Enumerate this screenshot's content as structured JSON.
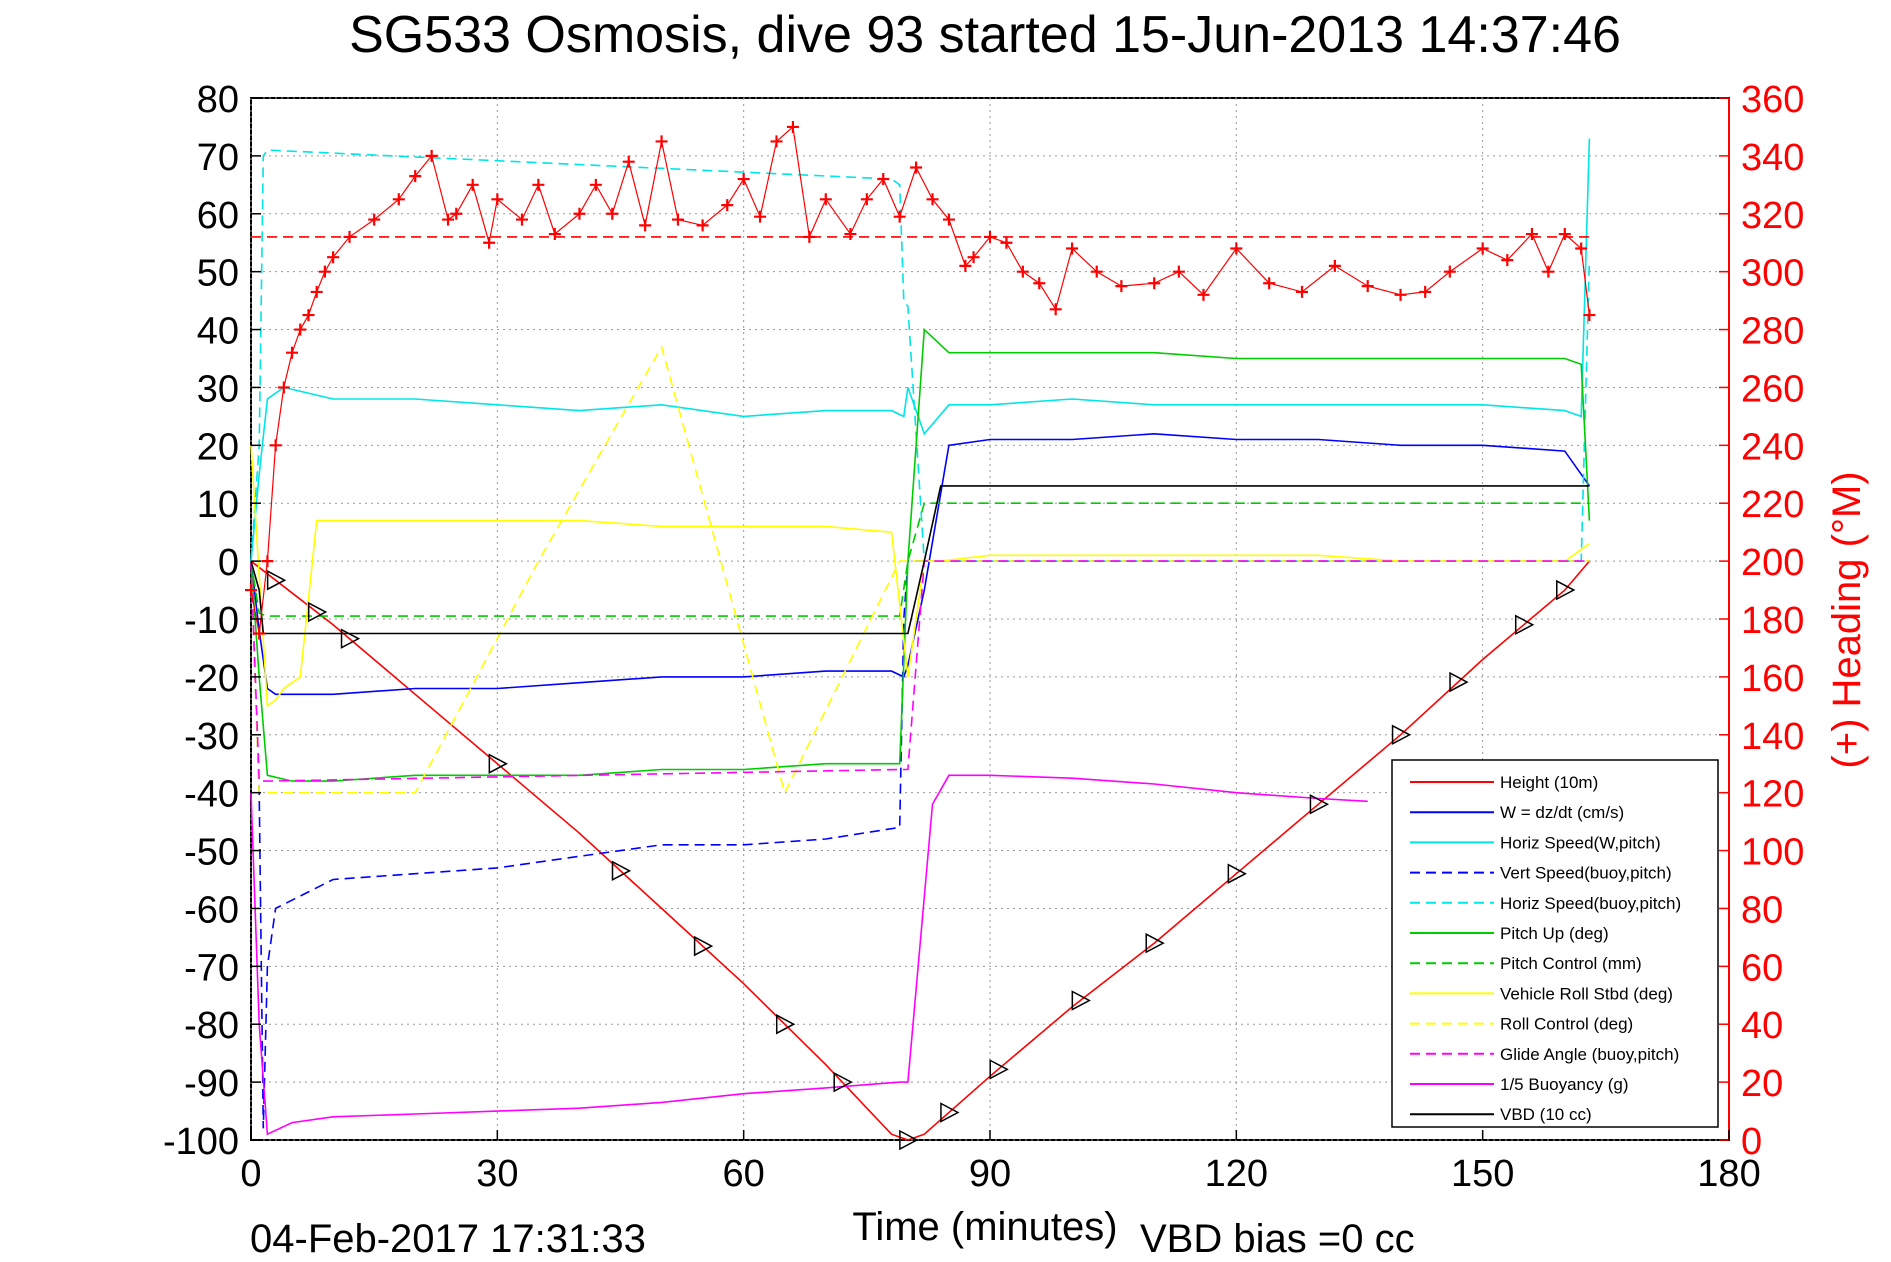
{
  "chart_data": {
    "type": "line",
    "title": "SG533 Osmosis, dive 93 started 15-Jun-2013 14:37:46",
    "xlabel": "Time (minutes)",
    "ylabel_right": "(+) Heading (°M)",
    "footer_date": "04-Feb-2017 17:31:33",
    "footer_note": "VBD bias =0 cc",
    "xlim": [
      0,
      180
    ],
    "ylim": [
      -100,
      80
    ],
    "ylim_right": [
      0,
      360
    ],
    "xticks": [
      0,
      30,
      60,
      90,
      120,
      150,
      180
    ],
    "yticks": [
      80,
      70,
      60,
      50,
      40,
      30,
      20,
      10,
      0,
      -10,
      -20,
      -30,
      -40,
      -50,
      -60,
      -70,
      -80,
      -90,
      -100
    ],
    "yticks_right": [
      360,
      340,
      320,
      300,
      280,
      260,
      240,
      220,
      200,
      180,
      160,
      140,
      120,
      100,
      80,
      60,
      40,
      20,
      0
    ],
    "grid": true,
    "legend_position": "bottom-right",
    "colors": {
      "red": "#ff0000",
      "blue": "#0000ff",
      "cyan": "#00e5e5",
      "green": "#00cc00",
      "yellow": "#ffff00",
      "magenta": "#ff00ff",
      "black": "#000000"
    },
    "series": [
      {
        "name": "Height (10m)",
        "color": "#ff0000",
        "dash": false,
        "x": [
          0,
          10,
          20,
          30,
          40,
          50,
          60,
          70,
          78,
          80,
          82,
          90,
          100,
          110,
          120,
          130,
          140,
          150,
          160,
          163
        ],
        "y": [
          0,
          -11,
          -23,
          -35,
          -47,
          -60,
          -73,
          -87,
          -99,
          -100,
          -99,
          -89,
          -77,
          -66,
          -54,
          -42,
          -30,
          -17,
          -5,
          0
        ]
      },
      {
        "name": "W = dz/dt (cm/s)",
        "color": "#0000ff",
        "dash": false,
        "x": [
          0,
          1,
          2,
          3,
          10,
          20,
          30,
          40,
          50,
          60,
          70,
          78,
          79.5,
          80,
          82,
          85,
          90,
          100,
          110,
          120,
          130,
          140,
          150,
          160,
          163
        ],
        "y": [
          0,
          -12,
          -22,
          -23,
          -23,
          -22,
          -22,
          -21,
          -20,
          -20,
          -19,
          -19,
          -20,
          -18,
          -5,
          20,
          21,
          21,
          22,
          21,
          21,
          20,
          20,
          19,
          13
        ]
      },
      {
        "name": "Horiz Speed(W,pitch)",
        "color": "#00e5e5",
        "dash": false,
        "x": [
          0,
          1,
          2,
          4,
          10,
          20,
          30,
          40,
          50,
          60,
          70,
          78,
          79.5,
          80,
          82,
          85,
          90,
          100,
          110,
          120,
          130,
          140,
          150,
          160,
          162,
          163
        ],
        "y": [
          0,
          15,
          28,
          30,
          28,
          28,
          27,
          26,
          27,
          25,
          26,
          26,
          25,
          30,
          22,
          27,
          27,
          28,
          27,
          27,
          27,
          27,
          27,
          26,
          25,
          73
        ]
      },
      {
        "name": "Vert Speed(buoy,pitch)",
        "color": "#0000ff",
        "dash": true,
        "x": [
          0,
          1,
          1.5,
          2,
          3,
          10,
          20,
          30,
          40,
          50,
          60,
          70,
          79,
          79.5,
          80,
          81,
          82,
          162,
          163
        ],
        "y": [
          0,
          -40,
          -98,
          -70,
          -60,
          -55,
          -54,
          -53,
          -51,
          -49,
          -49,
          -48,
          -46,
          -10,
          0,
          0,
          0,
          0,
          0
        ]
      },
      {
        "name": "Horiz Speed(buoy,pitch)",
        "color": "#00e5e5",
        "dash": true,
        "x": [
          0,
          1,
          1.5,
          2,
          78,
          79,
          79.5,
          80,
          82,
          162,
          163
        ],
        "y": [
          0,
          20,
          70,
          71,
          66,
          65,
          45,
          44,
          0,
          0,
          52
        ]
      },
      {
        "name": "Pitch Up (deg)",
        "color": "#00cc00",
        "dash": false,
        "x": [
          0,
          1,
          2,
          5,
          10,
          20,
          30,
          40,
          50,
          60,
          70,
          79,
          80,
          82,
          85,
          90,
          100,
          110,
          120,
          130,
          140,
          150,
          160,
          162,
          163
        ],
        "y": [
          0,
          -20,
          -37,
          -38,
          -38,
          -37,
          -37,
          -37,
          -36,
          -36,
          -35,
          -35,
          0,
          40,
          36,
          36,
          36,
          36,
          35,
          35,
          35,
          35,
          35,
          34,
          7
        ]
      },
      {
        "name": "Pitch Control (mm)",
        "color": "#00cc00",
        "dash": true,
        "x": [
          0,
          1,
          2,
          79,
          80,
          82,
          163
        ],
        "y": [
          0,
          -9,
          -9.5,
          -9.5,
          0,
          10,
          10
        ]
      },
      {
        "name": "Vehicle Roll Stbd (deg)",
        "color": "#ffff00",
        "dash": false,
        "x": [
          0,
          2,
          3,
          4,
          6,
          8,
          10,
          20,
          30,
          40,
          50,
          60,
          70,
          78,
          80,
          82,
          84,
          90,
          100,
          110,
          120,
          130,
          140,
          150,
          160,
          163
        ],
        "y": [
          20,
          -25,
          -24,
          -22,
          -20,
          7,
          7,
          7,
          7,
          7,
          6,
          6,
          6,
          5,
          -20,
          0,
          0,
          1,
          1,
          1,
          1,
          1,
          0,
          0,
          0,
          3
        ]
      },
      {
        "name": "Roll Control (deg)",
        "color": "#ffff00",
        "dash": true,
        "x": [
          0,
          1,
          2,
          20,
          35,
          50,
          65,
          79,
          80,
          82,
          163
        ],
        "y": [
          0,
          -40,
          -40,
          -40,
          0,
          37,
          -40,
          0,
          0,
          0,
          0
        ]
      },
      {
        "name": "Glide Angle (buoy,pitch)",
        "color": "#ff00ff",
        "dash": true,
        "x": [
          0,
          1,
          2,
          79,
          80,
          82,
          163
        ],
        "y": [
          0,
          -38,
          -38,
          -36,
          -36,
          0,
          0
        ]
      },
      {
        "name": "1/5 Buoyancy (g)",
        "color": "#ff00ff",
        "dash": false,
        "x": [
          0,
          1,
          2,
          5,
          10,
          20,
          30,
          40,
          50,
          60,
          70,
          79,
          80,
          83,
          85,
          90,
          100,
          110,
          120,
          130,
          136
        ],
        "y": [
          -40,
          -80,
          -99,
          -97,
          -96,
          -95.5,
          -95,
          -94.5,
          -93.5,
          -92,
          -91,
          -90,
          -90,
          -42,
          -37,
          -37,
          -37.5,
          -38.5,
          -40,
          -41,
          -41.5
        ]
      },
      {
        "name": "VBD (10 cc)",
        "color": "#000000",
        "dash": false,
        "x": [
          0,
          1,
          1.5,
          2,
          79,
          80,
          82,
          84,
          85,
          163
        ],
        "y": [
          0,
          -5,
          -12.5,
          -12.5,
          -12.5,
          -12.5,
          0,
          13,
          13,
          13
        ]
      },
      {
        "name": "Heading (right axis)",
        "color": "#ff0000",
        "dash": false,
        "markers": "plus",
        "axis": "right",
        "x": [
          0,
          1,
          2,
          3,
          4,
          5,
          6,
          7,
          8,
          9,
          10,
          12,
          15,
          18,
          20,
          22,
          24,
          25,
          27,
          29,
          30,
          33,
          35,
          37,
          40,
          42,
          44,
          46,
          48,
          50,
          52,
          55,
          58,
          60,
          62,
          64,
          66,
          68,
          70,
          73,
          75,
          77,
          79,
          81,
          83,
          85,
          87,
          88,
          90,
          92,
          94,
          96,
          98,
          100,
          103,
          106,
          110,
          113,
          116,
          120,
          124,
          128,
          132,
          136,
          140,
          143,
          146,
          150,
          153,
          156,
          158,
          160,
          162,
          163
        ],
        "y": [
          190,
          175,
          200,
          240,
          260,
          272,
          280,
          285,
          293,
          300,
          305,
          312,
          318,
          325,
          333,
          340,
          318,
          320,
          330,
          310,
          325,
          318,
          330,
          313,
          320,
          330,
          320,
          338,
          316,
          345,
          318,
          316,
          323,
          332,
          319,
          345,
          350,
          312,
          325,
          313,
          325,
          332,
          319,
          336,
          325,
          318,
          302,
          305,
          312,
          310,
          300,
          296,
          287,
          308,
          300,
          295,
          296,
          300,
          292,
          308,
          296,
          293,
          302,
          295,
          292,
          293,
          300,
          308,
          304,
          313,
          300,
          313,
          308,
          285
        ]
      },
      {
        "name": "Heading target (right axis)",
        "color": "#ff0000",
        "dash": true,
        "axis": "right",
        "x": [
          0,
          163
        ],
        "y": [
          312,
          312
        ]
      }
    ]
  }
}
